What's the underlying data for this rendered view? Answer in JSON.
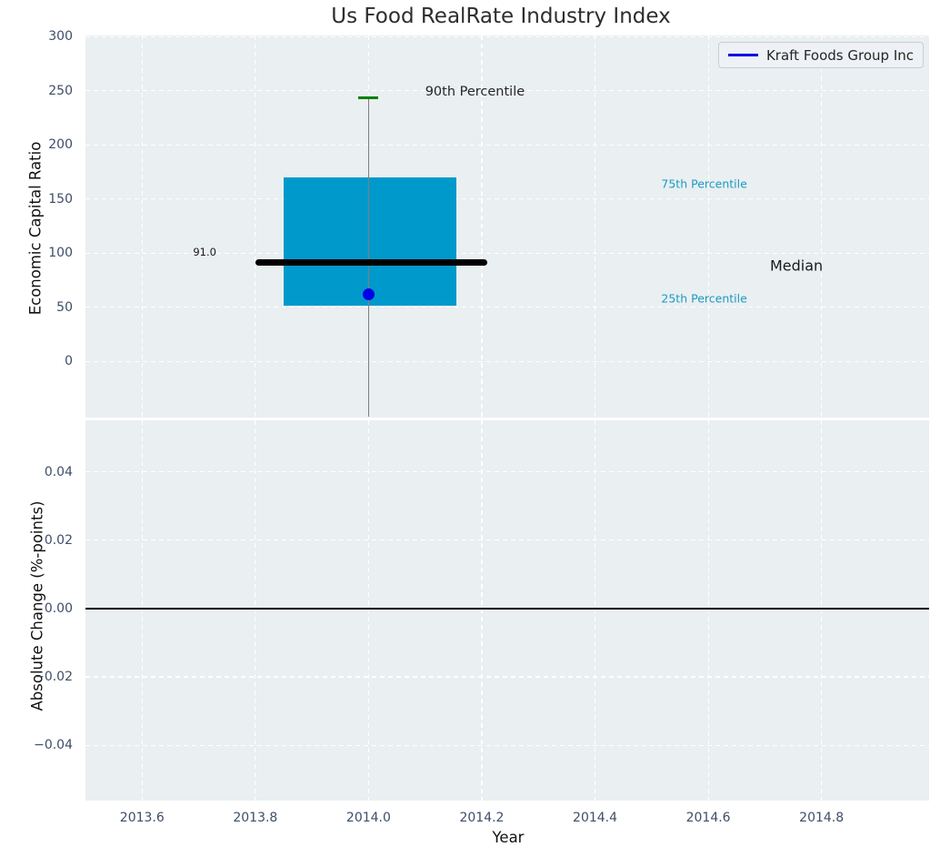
{
  "title": "Us Food RealRate Industry Index",
  "legend": {
    "label": "Kraft Foods Group Inc",
    "line_color": "#0000e6"
  },
  "colors": {
    "figure_bg": "#ffffff",
    "axes_bg": "#eaeff1",
    "grid": "#ffffff",
    "tick_label": "#3e4e68",
    "box_fill": "#0099cc",
    "median_line": "#000000",
    "whisker": "#7f7f7f",
    "whisker_cap": "#008000",
    "marker": "#0000e6",
    "zero_line": "#000000",
    "annotation_blue": "#1a9ac6",
    "text_dark": "#262626"
  },
  "chart_data": [
    {
      "type": "box",
      "title": "Us Food RealRate Industry Index",
      "xlabel": "Year",
      "ylabel": "Economic Capital Ratio",
      "xlim": [
        2013.5,
        2014.99
      ],
      "ylim": [
        -52,
        301
      ],
      "grid": "white dashed, on",
      "legend_position": "upper right",
      "xticks": [
        {
          "v": 2013.6,
          "label": "2013.6"
        },
        {
          "v": 2013.8,
          "label": "2013.8"
        },
        {
          "v": 2014.0,
          "label": "2014.0"
        },
        {
          "v": 2014.2,
          "label": "2014.2"
        },
        {
          "v": 2014.4,
          "label": "2014.4"
        },
        {
          "v": 2014.6,
          "label": "2014.6"
        },
        {
          "v": 2014.8,
          "label": "2014.8"
        }
      ],
      "yticks": [
        {
          "v": 300,
          "label": "300"
        },
        {
          "v": 250,
          "label": "250"
        },
        {
          "v": 200,
          "label": "200"
        },
        {
          "v": 150,
          "label": "150"
        },
        {
          "v": 100,
          "label": "100"
        },
        {
          "v": 50,
          "label": "50"
        },
        {
          "v": 0,
          "label": "0"
        }
      ],
      "box": {
        "x_center": 2014,
        "p25": 51,
        "median": 91,
        "p75": 170,
        "p90": 243.5,
        "whisker_low_clipped_at_axis_bottom": true,
        "box_x_range": [
          2013.85,
          2014.155
        ],
        "median_x_range": [
          2013.8,
          2014.21
        ],
        "median_value_label": "91.0"
      },
      "series": [
        {
          "name": "Kraft Foods Group Inc",
          "type": "scatter",
          "x": [
            2014
          ],
          "y": [
            62
          ],
          "color": "#0000e6"
        }
      ],
      "annotations": [
        {
          "text": "90th Percentile",
          "x": 2014.1,
          "y": 249,
          "color": "#262626",
          "size": 14.5
        },
        {
          "text": "75th Percentile",
          "x": 2014.517,
          "y": 164,
          "color": "#1a9ac6",
          "size": 12.5
        },
        {
          "text": "Median",
          "x": 2014.709,
          "y": 88,
          "color": "#1a1a1a",
          "size": 16
        },
        {
          "text": "25th Percentile",
          "x": 2014.517,
          "y": 58,
          "color": "#1a9ac6",
          "size": 12.5
        },
        {
          "text": "91.0",
          "x": 2013.69,
          "y": 101,
          "color": "#1a1a1a",
          "size": 11.5
        }
      ]
    },
    {
      "type": "line",
      "xlabel": "Year",
      "ylabel": "Absolute Change (%-points)",
      "xlim": [
        2013.5,
        2014.99
      ],
      "ylim": [
        -0.0562,
        0.0551
      ],
      "grid": "white dashed, on",
      "yticks": [
        {
          "v": 0.04,
          "label": "0.04"
        },
        {
          "v": 0.02,
          "label": "0.02"
        },
        {
          "v": 0.0,
          "label": "0.00"
        },
        {
          "v": -0.02,
          "label": "−0.02"
        },
        {
          "v": -0.04,
          "label": "−0.04"
        }
      ],
      "zero_line": {
        "y": 0.0,
        "color": "#000000"
      },
      "series": []
    }
  ]
}
